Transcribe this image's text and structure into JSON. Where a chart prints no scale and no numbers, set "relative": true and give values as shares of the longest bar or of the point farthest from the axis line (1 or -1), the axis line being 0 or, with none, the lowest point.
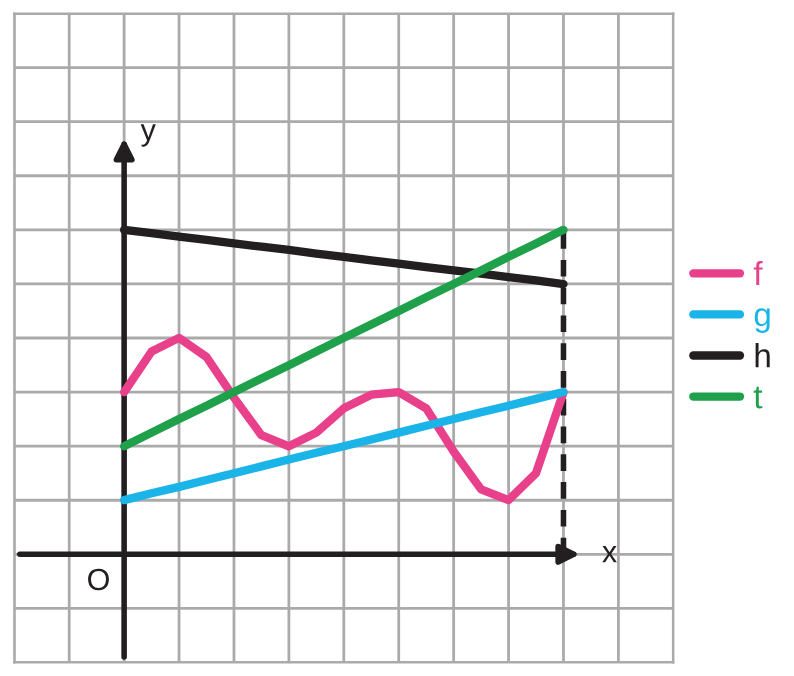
{
  "chart_data": {
    "type": "line",
    "relative": true,
    "xlabel": "x",
    "ylabel": "y",
    "annotations": [
      "O"
    ],
    "categories": [
      null,
      null,
      null,
      null,
      null,
      null,
      null,
      null,
      null,
      null,
      null,
      null,
      null,
      null,
      null,
      null,
      null
    ],
    "grid": true,
    "legend": "right",
    "line_style": "solid",
    "series": [
      {
        "name": "f",
        "color": "#e8408a",
        "values": [
          0.5,
          0.625,
          0.667,
          0.608,
          0.483,
          0.367,
          0.333,
          0.375,
          0.45,
          0.492,
          0.5,
          0.45,
          0.317,
          0.2,
          0.167,
          0.25,
          0.5
        ]
      },
      {
        "name": "g",
        "color": "#1ab4e8",
        "values": [
          0.167,
          0.188,
          0.208,
          0.229,
          0.25,
          0.271,
          0.292,
          0.313,
          0.333,
          0.354,
          0.375,
          0.396,
          0.417,
          0.438,
          0.458,
          0.479,
          0.5
        ]
      },
      {
        "name": "h",
        "color": "#231f20",
        "values": [
          1,
          0.99,
          0.979,
          0.969,
          0.958,
          0.948,
          0.938,
          0.927,
          0.917,
          0.906,
          0.896,
          0.885,
          0.875,
          0.865,
          0.854,
          0.844,
          0.833
        ]
      },
      {
        "name": "t",
        "color": "#1fa04a",
        "values": [
          0.333,
          0.375,
          0.417,
          0.458,
          0.5,
          0.542,
          0.583,
          0.625,
          0.667,
          0.708,
          0.75,
          0.792,
          0.833,
          0.875,
          0.917,
          0.958,
          1
        ]
      }
    ]
  }
}
